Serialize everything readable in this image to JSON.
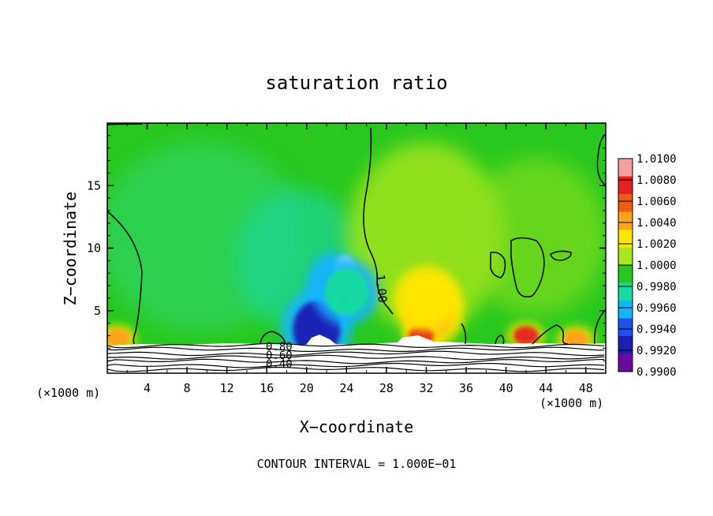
{
  "chart_data": {
    "type": "heatmap",
    "title": "saturation ratio",
    "xlabel": "X−coordinate",
    "ylabel": "Z−coordinate",
    "x_unit_left": "(×1000 m)",
    "x_unit_right": "(×1000 m)",
    "xlim": [
      0,
      50
    ],
    "ylim": [
      0,
      20
    ],
    "x_ticks": [
      4,
      8,
      12,
      16,
      20,
      24,
      28,
      32,
      36,
      40,
      44,
      48
    ],
    "x_tick_labels": [
      "4",
      "8",
      "12",
      "16",
      "20",
      "24",
      "28",
      "32",
      "36",
      "40",
      "44",
      "48"
    ],
    "y_ticks": [
      5,
      10,
      15
    ],
    "y_tick_labels": [
      "5",
      "10",
      "15"
    ],
    "colorbar": {
      "min": 0.99,
      "max": 1.01,
      "labels": [
        "1.0100",
        "1.0080",
        "1.0060",
        "1.0040",
        "1.0020",
        "1.0000",
        "0.9980",
        "0.9960",
        "0.9940",
        "0.9920",
        "0.9900"
      ],
      "colors": [
        "#f4a0a0",
        "#e52222",
        "#f05a14",
        "#ffa31a",
        "#ffe600",
        "#a9e61a",
        "#28c81e",
        "#14dca0",
        "#14b4ff",
        "#1e50f0",
        "#1e1eb4",
        "#6a0aa0"
      ]
    },
    "contour_labels": [
      "1.00",
      "0.80",
      "0.60",
      "0.40"
    ],
    "contour_interval_text": "CONTOUR INTERVAL = 1.000E−01",
    "features": [
      {
        "kind": "dry",
        "x": 21,
        "z": 3.5,
        "value": 0.992
      },
      {
        "kind": "dry",
        "x": 24,
        "z": 6.5,
        "value": 0.997
      },
      {
        "kind": "moist",
        "x": 31.5,
        "z": 3.0,
        "value": 1.008
      },
      {
        "kind": "moist",
        "x": 32,
        "z": 6.0,
        "value": 1.003
      },
      {
        "kind": "moist",
        "x": 42,
        "z": 3.0,
        "value": 1.007
      },
      {
        "kind": "moist",
        "x": 1,
        "z": 2.8,
        "value": 1.005
      },
      {
        "kind": "moist",
        "x": 47,
        "z": 2.7,
        "value": 1.005
      }
    ]
  }
}
